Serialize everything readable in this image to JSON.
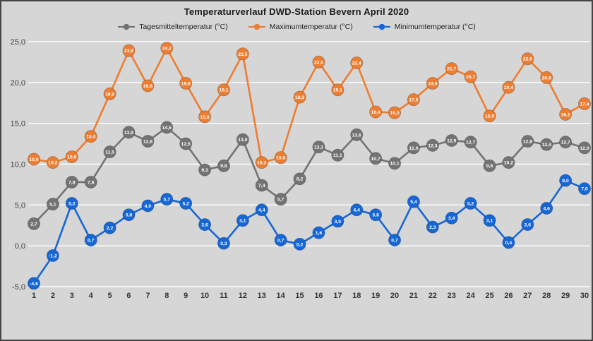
{
  "title": "Temperaturverlauf DWD-Station Bevern April 2020",
  "colors": {
    "mean": "#737373",
    "max": "#ED7D31",
    "min": "#1667D6",
    "background": "#D6D6D6",
    "gridline": "#FFFFFF",
    "axis_text": "#3F3F3F",
    "point_label_text": "#FFFFFF"
  },
  "legend": [
    {
      "key": "mean",
      "label": "Tagesmitteltemperatur (°C)"
    },
    {
      "key": "max",
      "label": "Maximumtemperatur (°C)"
    },
    {
      "key": "min",
      "label": "Minimumtemperatur (°C)"
    }
  ],
  "chart_data": {
    "type": "line",
    "title": "Temperaturverlauf DWD-Station Bevern April 2020",
    "xlabel": "",
    "ylabel": "",
    "ylim": [
      -5,
      25
    ],
    "ytick_step": 5,
    "ytick_labels": [
      "-5,0",
      "0,0",
      "5,0",
      "10,0",
      "15,0",
      "20,0",
      "25,0"
    ],
    "grid": true,
    "legend_position": "top",
    "x": [
      1,
      2,
      3,
      4,
      5,
      6,
      7,
      8,
      9,
      10,
      11,
      12,
      13,
      14,
      15,
      16,
      17,
      18,
      19,
      20,
      21,
      22,
      23,
      24,
      25,
      26,
      27,
      28,
      29,
      30
    ],
    "series": [
      {
        "name": "Tagesmitteltemperatur (°C)",
        "color_key": "mean",
        "values": [
          2.7,
          5.1,
          7.8,
          7.8,
          11.5,
          13.9,
          12.8,
          14.5,
          12.5,
          9.3,
          9.8,
          13.0,
          7.4,
          5.7,
          8.2,
          12.1,
          11.1,
          13.6,
          10.7,
          10.1,
          12.0,
          12.3,
          12.9,
          12.7,
          9.8,
          10.2,
          12.8,
          12.4,
          12.7,
          12.0
        ]
      },
      {
        "name": "Maximumtemperatur (°C)",
        "color_key": "max",
        "values": [
          10.6,
          10.2,
          10.9,
          13.4,
          18.6,
          23.9,
          19.6,
          24.2,
          19.9,
          15.8,
          19.1,
          23.5,
          10.2,
          10.8,
          18.2,
          22.5,
          19.1,
          22.4,
          16.4,
          16.3,
          17.9,
          19.9,
          21.7,
          20.7,
          15.9,
          19.4,
          22.9,
          20.6,
          16.1,
          17.4
        ]
      },
      {
        "name": "Minimumtemperatur (°C)",
        "color_key": "min",
        "values": [
          -4.6,
          -1.2,
          5.2,
          0.7,
          2.2,
          3.8,
          4.9,
          5.7,
          5.2,
          2.6,
          0.3,
          3.1,
          4.4,
          0.7,
          0.2,
          1.6,
          3.0,
          4.4,
          3.8,
          0.7,
          5.4,
          2.3,
          3.4,
          5.2,
          3.1,
          0.4,
          2.6,
          4.6,
          8.0,
          7.0
        ]
      }
    ]
  }
}
